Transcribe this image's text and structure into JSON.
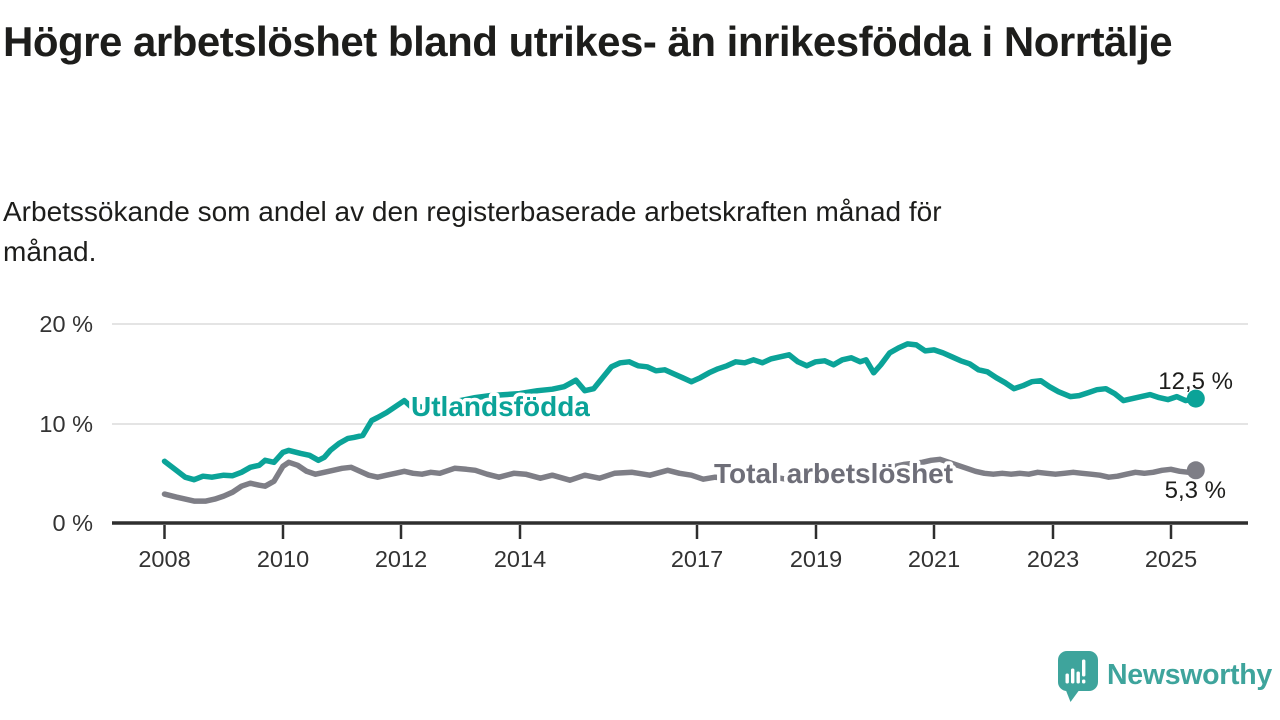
{
  "header": {
    "title": "Högre arbetslöshet bland utrikes- än inrikesfödda i Norrtälje",
    "subtitle": "Arbetssökande som andel av den registerbaserade arbetskraften månad för månad."
  },
  "branding": {
    "logo_icon": "speech-bubble-bar-chart-icon",
    "logo_text": "Newsworthy",
    "brand_color": "#3ea49c"
  },
  "chart_data": {
    "type": "line",
    "unit": "percent",
    "grid": true,
    "legend_position": "inline-labels",
    "x_axis": {
      "range": [
        2007.8,
        2026.3
      ],
      "ticks": [
        2008,
        2010,
        2012,
        2014,
        2017,
        2019,
        2021,
        2023,
        2025
      ],
      "tick_labels": [
        "2008",
        "2010",
        "2012",
        "2014",
        "2017",
        "2019",
        "2021",
        "2023",
        "2025"
      ]
    },
    "y_axis": {
      "range": [
        0,
        21
      ],
      "ticks": [
        0,
        10,
        20
      ],
      "tick_labels": [
        "0 %",
        "10 %",
        "20 %"
      ]
    },
    "series": [
      {
        "name": "Utlandsfödda",
        "color": "#0ba398",
        "label_color": "#0ba398",
        "end_value": 12.5,
        "end_label": "12,5 %",
        "points": [
          [
            2008.0,
            6.2
          ],
          [
            2008.2,
            5.3
          ],
          [
            2008.35,
            4.6
          ],
          [
            2008.5,
            4.35
          ],
          [
            2008.65,
            4.7
          ],
          [
            2008.8,
            4.6
          ],
          [
            2009.0,
            4.8
          ],
          [
            2009.15,
            4.75
          ],
          [
            2009.3,
            5.1
          ],
          [
            2009.45,
            5.6
          ],
          [
            2009.6,
            5.8
          ],
          [
            2009.7,
            6.3
          ],
          [
            2009.85,
            6.1
          ],
          [
            2010.0,
            7.1
          ],
          [
            2010.1,
            7.3
          ],
          [
            2010.3,
            7.0
          ],
          [
            2010.45,
            6.8
          ],
          [
            2010.6,
            6.3
          ],
          [
            2010.7,
            6.6
          ],
          [
            2010.8,
            7.3
          ],
          [
            2010.95,
            8.0
          ],
          [
            2011.1,
            8.5
          ],
          [
            2011.2,
            8.6
          ],
          [
            2011.35,
            8.8
          ],
          [
            2011.5,
            10.3
          ],
          [
            2011.6,
            10.6
          ],
          [
            2011.75,
            11.1
          ],
          [
            2011.9,
            11.7
          ],
          [
            2012.05,
            12.3
          ],
          [
            2012.2,
            11.5
          ],
          [
            2012.3,
            11.7
          ],
          [
            2012.45,
            11.5
          ],
          [
            2012.6,
            11.7
          ],
          [
            2012.8,
            12.0
          ],
          [
            2013.0,
            12.3
          ],
          [
            2013.25,
            12.6
          ],
          [
            2013.5,
            12.8
          ],
          [
            2013.75,
            12.9
          ],
          [
            2014.0,
            13.0
          ],
          [
            2014.3,
            13.3
          ],
          [
            2014.55,
            13.45
          ],
          [
            2014.75,
            13.7
          ],
          [
            2014.95,
            14.35
          ],
          [
            2015.1,
            13.3
          ],
          [
            2015.25,
            13.5
          ],
          [
            2015.4,
            14.6
          ],
          [
            2015.55,
            15.7
          ],
          [
            2015.7,
            16.1
          ],
          [
            2015.85,
            16.2
          ],
          [
            2016.0,
            15.8
          ],
          [
            2016.15,
            15.7
          ],
          [
            2016.3,
            15.3
          ],
          [
            2016.45,
            15.4
          ],
          [
            2016.6,
            15.0
          ],
          [
            2016.75,
            14.6
          ],
          [
            2016.9,
            14.2
          ],
          [
            2017.05,
            14.6
          ],
          [
            2017.2,
            15.1
          ],
          [
            2017.35,
            15.5
          ],
          [
            2017.5,
            15.8
          ],
          [
            2017.65,
            16.2
          ],
          [
            2017.8,
            16.1
          ],
          [
            2017.95,
            16.4
          ],
          [
            2018.1,
            16.1
          ],
          [
            2018.25,
            16.5
          ],
          [
            2018.4,
            16.7
          ],
          [
            2018.55,
            16.9
          ],
          [
            2018.7,
            16.2
          ],
          [
            2018.85,
            15.8
          ],
          [
            2019.0,
            16.2
          ],
          [
            2019.15,
            16.3
          ],
          [
            2019.3,
            15.9
          ],
          [
            2019.45,
            16.4
          ],
          [
            2019.6,
            16.6
          ],
          [
            2019.75,
            16.2
          ],
          [
            2019.85,
            16.4
          ],
          [
            2019.98,
            15.1
          ],
          [
            2020.1,
            15.9
          ],
          [
            2020.25,
            17.1
          ],
          [
            2020.4,
            17.6
          ],
          [
            2020.55,
            18.0
          ],
          [
            2020.7,
            17.9
          ],
          [
            2020.85,
            17.3
          ],
          [
            2021.0,
            17.4
          ],
          [
            2021.15,
            17.1
          ],
          [
            2021.3,
            16.7
          ],
          [
            2021.45,
            16.3
          ],
          [
            2021.6,
            16.0
          ],
          [
            2021.75,
            15.4
          ],
          [
            2021.9,
            15.2
          ],
          [
            2022.05,
            14.6
          ],
          [
            2022.2,
            14.1
          ],
          [
            2022.35,
            13.5
          ],
          [
            2022.5,
            13.8
          ],
          [
            2022.65,
            14.2
          ],
          [
            2022.8,
            14.3
          ],
          [
            2022.95,
            13.7
          ],
          [
            2023.1,
            13.2
          ],
          [
            2023.3,
            12.7
          ],
          [
            2023.45,
            12.8
          ],
          [
            2023.6,
            13.1
          ],
          [
            2023.75,
            13.4
          ],
          [
            2023.9,
            13.5
          ],
          [
            2024.05,
            13.0
          ],
          [
            2024.2,
            12.3
          ],
          [
            2024.35,
            12.5
          ],
          [
            2024.5,
            12.7
          ],
          [
            2024.65,
            12.9
          ],
          [
            2024.8,
            12.6
          ],
          [
            2024.95,
            12.4
          ],
          [
            2025.1,
            12.7
          ],
          [
            2025.25,
            12.3
          ],
          [
            2025.42,
            12.5
          ]
        ]
      },
      {
        "name": "Total arbetslöshet",
        "color": "#7e7e86",
        "label_color": "#6e6e78",
        "end_value": 5.3,
        "end_label": "5,3 %",
        "points": [
          [
            2008.0,
            2.9
          ],
          [
            2008.2,
            2.6
          ],
          [
            2008.35,
            2.4
          ],
          [
            2008.5,
            2.2
          ],
          [
            2008.7,
            2.2
          ],
          [
            2008.85,
            2.4
          ],
          [
            2009.0,
            2.7
          ],
          [
            2009.15,
            3.1
          ],
          [
            2009.3,
            3.7
          ],
          [
            2009.45,
            4.0
          ],
          [
            2009.6,
            3.8
          ],
          [
            2009.7,
            3.7
          ],
          [
            2009.85,
            4.2
          ],
          [
            2010.0,
            5.7
          ],
          [
            2010.1,
            6.1
          ],
          [
            2010.25,
            5.8
          ],
          [
            2010.4,
            5.2
          ],
          [
            2010.55,
            4.9
          ],
          [
            2010.7,
            5.1
          ],
          [
            2010.85,
            5.3
          ],
          [
            2011.0,
            5.5
          ],
          [
            2011.15,
            5.6
          ],
          [
            2011.3,
            5.2
          ],
          [
            2011.45,
            4.8
          ],
          [
            2011.6,
            4.6
          ],
          [
            2011.75,
            4.8
          ],
          [
            2011.9,
            5.0
          ],
          [
            2012.05,
            5.2
          ],
          [
            2012.2,
            5.0
          ],
          [
            2012.35,
            4.9
          ],
          [
            2012.5,
            5.1
          ],
          [
            2012.65,
            5.0
          ],
          [
            2012.9,
            5.5
          ],
          [
            2013.1,
            5.4
          ],
          [
            2013.25,
            5.3
          ],
          [
            2013.45,
            4.9
          ],
          [
            2013.65,
            4.6
          ],
          [
            2013.9,
            5.0
          ],
          [
            2014.1,
            4.9
          ],
          [
            2014.35,
            4.5
          ],
          [
            2014.55,
            4.8
          ],
          [
            2014.85,
            4.3
          ],
          [
            2015.1,
            4.8
          ],
          [
            2015.35,
            4.5
          ],
          [
            2015.6,
            5.0
          ],
          [
            2015.9,
            5.1
          ],
          [
            2016.2,
            4.8
          ],
          [
            2016.5,
            5.3
          ],
          [
            2016.7,
            5.0
          ],
          [
            2016.9,
            4.8
          ],
          [
            2017.1,
            4.4
          ],
          [
            2017.3,
            4.6
          ],
          [
            2017.5,
            4.5
          ],
          [
            2017.7,
            4.4
          ],
          [
            2017.9,
            4.6
          ],
          [
            2018.1,
            4.5
          ],
          [
            2018.3,
            4.6
          ],
          [
            2018.5,
            4.4
          ],
          [
            2018.7,
            4.5
          ],
          [
            2018.9,
            4.4
          ],
          [
            2019.1,
            4.6
          ],
          [
            2019.3,
            4.5
          ],
          [
            2019.5,
            4.7
          ],
          [
            2019.7,
            4.6
          ],
          [
            2019.9,
            4.7
          ],
          [
            2020.05,
            4.8
          ],
          [
            2020.2,
            5.3
          ],
          [
            2020.35,
            5.7
          ],
          [
            2020.5,
            5.9
          ],
          [
            2020.65,
            6.0
          ],
          [
            2020.8,
            6.1
          ],
          [
            2020.95,
            6.3
          ],
          [
            2021.1,
            6.4
          ],
          [
            2021.25,
            6.1
          ],
          [
            2021.4,
            5.8
          ],
          [
            2021.55,
            5.5
          ],
          [
            2021.7,
            5.2
          ],
          [
            2021.85,
            5.0
          ],
          [
            2022.0,
            4.9
          ],
          [
            2022.15,
            5.0
          ],
          [
            2022.3,
            4.9
          ],
          [
            2022.45,
            5.0
          ],
          [
            2022.6,
            4.9
          ],
          [
            2022.75,
            5.1
          ],
          [
            2022.9,
            5.0
          ],
          [
            2023.05,
            4.9
          ],
          [
            2023.2,
            5.0
          ],
          [
            2023.35,
            5.1
          ],
          [
            2023.5,
            5.0
          ],
          [
            2023.65,
            4.9
          ],
          [
            2023.8,
            4.8
          ],
          [
            2023.95,
            4.6
          ],
          [
            2024.1,
            4.7
          ],
          [
            2024.25,
            4.9
          ],
          [
            2024.4,
            5.1
          ],
          [
            2024.55,
            5.0
          ],
          [
            2024.7,
            5.1
          ],
          [
            2024.85,
            5.3
          ],
          [
            2025.0,
            5.4
          ],
          [
            2025.15,
            5.2
          ],
          [
            2025.3,
            5.1
          ],
          [
            2025.42,
            5.3
          ]
        ]
      }
    ]
  }
}
